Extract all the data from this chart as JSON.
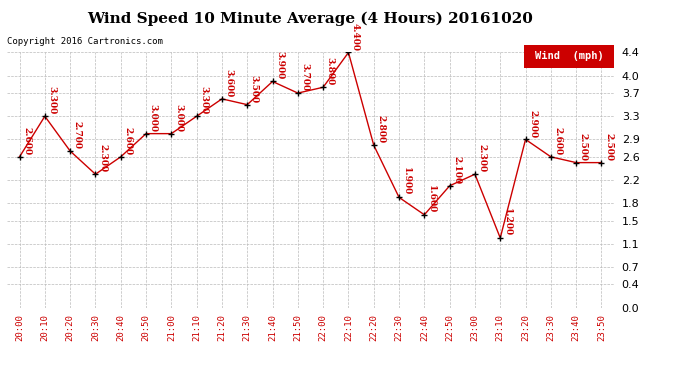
{
  "title": "Wind Speed 10 Minute Average (4 Hours) 20161020",
  "copyright": "Copyright 2016 Cartronics.com",
  "legend_label": "Wind  (mph)",
  "times": [
    "20:00",
    "20:10",
    "20:20",
    "20:30",
    "20:40",
    "20:50",
    "21:00",
    "21:10",
    "21:20",
    "21:30",
    "21:40",
    "21:50",
    "22:00",
    "22:10",
    "22:20",
    "22:30",
    "22:40",
    "22:50",
    "23:00",
    "23:10",
    "23:20",
    "23:30",
    "23:40",
    "23:50"
  ],
  "values": [
    2.6,
    3.3,
    2.7,
    2.3,
    2.6,
    3.0,
    3.0,
    3.3,
    3.6,
    3.5,
    3.9,
    3.7,
    3.8,
    4.4,
    2.8,
    1.9,
    1.6,
    2.1,
    2.3,
    1.2,
    2.9,
    2.6,
    2.5,
    2.5
  ],
  "labels": [
    "2.600",
    "3.300",
    "2.700",
    "2.300",
    "2.600",
    "3.000",
    "3.000",
    "3.300",
    "3.600",
    "3.500",
    "3.900",
    "3.700",
    "3.800",
    "4.400",
    "2.800",
    "1.900",
    "1.600",
    "2.100",
    "2.300",
    "1.200",
    "2.900",
    "2.600",
    "2.500",
    "2.500"
  ],
  "ylim": [
    0.0,
    4.4
  ],
  "yticks": [
    0.0,
    0.4,
    0.7,
    1.1,
    1.5,
    1.8,
    2.2,
    2.6,
    2.9,
    3.3,
    3.7,
    4.0,
    4.4
  ],
  "line_color": "#cc0000",
  "marker_color": "#000000",
  "label_color": "#cc0000",
  "bg_color": "#ffffff",
  "grid_color": "#bbbbbb",
  "title_fontsize": 11,
  "label_fontsize": 6.5,
  "legend_bg": "#cc0000",
  "legend_fg": "#ffffff"
}
